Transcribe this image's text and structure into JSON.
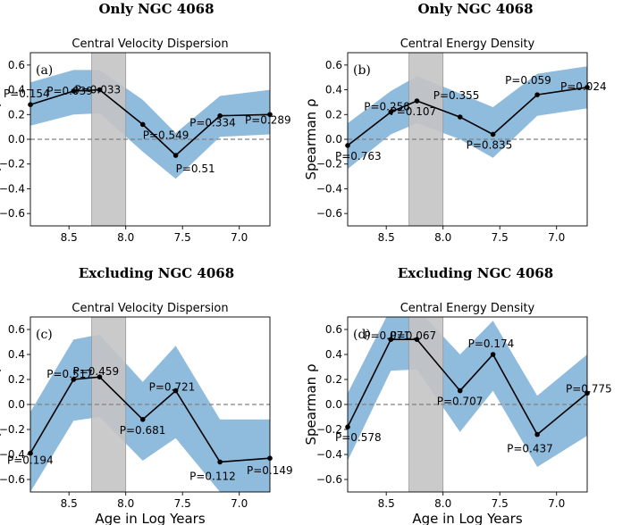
{
  "chart_data": [
    {
      "type": "line",
      "suptitle": "Only NGC 4068",
      "title": "Central Velocity Dispersion",
      "panel_label": "(a)",
      "xlabel": "",
      "ylabel": "Spearman ρ",
      "xlim": [
        8.84,
        6.73
      ],
      "ylim": [
        -0.7,
        0.7
      ],
      "xticks": [
        8.5,
        8.0,
        7.5,
        7.0
      ],
      "xtick_labels": [
        "8.5",
        "8.0",
        "7.5",
        "7.0"
      ],
      "yticks": [
        -0.6,
        -0.4,
        -0.2,
        0.0,
        0.2,
        0.4,
        0.6
      ],
      "ytick_labels": [
        "−0.6",
        "−0.4",
        "−0.2",
        "0.0",
        "0.2",
        "0.4",
        "0.6"
      ],
      "shaded_region": [
        8.3,
        8.0
      ],
      "x": [
        8.84,
        8.46,
        8.23,
        7.85,
        7.56,
        7.17,
        6.73
      ],
      "values": [
        0.28,
        0.39,
        0.4,
        0.12,
        -0.13,
        0.19,
        0.2
      ],
      "band_upper": [
        0.46,
        0.56,
        0.56,
        0.32,
        0.05,
        0.35,
        0.4
      ],
      "band_lower": [
        0.11,
        0.2,
        0.21,
        -0.1,
        -0.32,
        0.02,
        0.04
      ],
      "p_labels": [
        "P=0.154",
        "P=0.039",
        "P=0.033",
        "P=0.549",
        "P=0.51",
        "P=0.334",
        "P=0.289"
      ]
    },
    {
      "type": "line",
      "suptitle": "Only NGC 4068",
      "title": "Central Energy Density",
      "panel_label": "(b)",
      "xlabel": "",
      "ylabel": "Spearman ρ",
      "xlim": [
        8.84,
        6.73
      ],
      "ylim": [
        -0.7,
        0.7
      ],
      "xticks": [
        8.5,
        8.0,
        7.5,
        7.0
      ],
      "xtick_labels": [
        "8.5",
        "8.0",
        "7.5",
        "7.0"
      ],
      "yticks": [
        -0.6,
        -0.4,
        -0.2,
        0.0,
        0.2,
        0.4,
        0.6
      ],
      "ytick_labels": [
        "−0.6",
        "−0.4",
        "−0.2",
        "0.0",
        "0.2",
        "0.4",
        "0.6"
      ],
      "shaded_region": [
        8.3,
        8.0
      ],
      "x": [
        8.84,
        8.46,
        8.23,
        7.85,
        7.56,
        7.17,
        6.73
      ],
      "values": [
        -0.05,
        0.22,
        0.31,
        0.18,
        0.04,
        0.36,
        0.42
      ],
      "band_upper": [
        0.13,
        0.39,
        0.51,
        0.37,
        0.26,
        0.53,
        0.59
      ],
      "band_lower": [
        -0.24,
        0.04,
        0.13,
        0.0,
        -0.15,
        0.19,
        0.25
      ],
      "p_labels": [
        "P=0.763",
        "P=0.258",
        "P=0.107",
        "P=0.355",
        "P=0.835",
        "P=0.059",
        "P=0.024"
      ]
    },
    {
      "type": "line",
      "suptitle": "Excluding NGC 4068",
      "title": "Central Velocity Dispersion",
      "panel_label": "(c)",
      "xlabel": "Age in Log Years",
      "ylabel": "Spearman ρ",
      "xlim": [
        8.84,
        6.73
      ],
      "ylim": [
        -0.7,
        0.7
      ],
      "xticks": [
        8.5,
        8.0,
        7.5,
        7.0
      ],
      "xtick_labels": [
        "8.5",
        "8.0",
        "7.5",
        "7.0"
      ],
      "yticks": [
        -0.6,
        -0.4,
        -0.2,
        0.0,
        0.2,
        0.4,
        0.6
      ],
      "ytick_labels": [
        "−0.6",
        "−0.4",
        "−0.2",
        "0.0",
        "0.2",
        "0.4",
        "0.6"
      ],
      "shaded_region": [
        8.3,
        8.0
      ],
      "x": [
        8.84,
        8.46,
        8.23,
        7.85,
        7.56,
        7.17,
        6.73
      ],
      "values": [
        -0.39,
        0.2,
        0.22,
        -0.12,
        0.11,
        -0.46,
        -0.43
      ],
      "band_upper": [
        -0.06,
        0.52,
        0.56,
        0.18,
        0.47,
        -0.12,
        -0.12
      ],
      "band_lower": [
        -0.7,
        -0.13,
        -0.1,
        -0.45,
        -0.27,
        -0.7,
        -0.7
      ],
      "p_labels": [
        "P=0.194",
        "P=0.517",
        "P=0.459",
        "P=0.681",
        "P=0.721",
        "P=0.112",
        "P=0.149"
      ]
    },
    {
      "type": "line",
      "suptitle": "Excluding NGC 4068",
      "title": "Central Energy Density",
      "panel_label": "(d)",
      "xlabel": "Age in Log Years",
      "ylabel": "Spearman ρ",
      "xlim": [
        8.84,
        6.73
      ],
      "ylim": [
        -0.7,
        0.7
      ],
      "xticks": [
        8.5,
        8.0,
        7.5,
        7.0
      ],
      "xtick_labels": [
        "8.5",
        "8.0",
        "7.5",
        "7.0"
      ],
      "yticks": [
        -0.6,
        -0.4,
        -0.2,
        0.0,
        0.2,
        0.4,
        0.6
      ],
      "ytick_labels": [
        "−0.6",
        "−0.4",
        "−0.2",
        "0.0",
        "0.2",
        "0.4",
        "0.6"
      ],
      "shaded_region": [
        8.3,
        8.0
      ],
      "x": [
        8.84,
        8.46,
        8.23,
        7.85,
        7.56,
        7.17,
        6.73
      ],
      "values": [
        -0.18,
        0.52,
        0.52,
        0.11,
        0.4,
        -0.24,
        0.09
      ],
      "band_upper": [
        0.09,
        0.77,
        0.77,
        0.4,
        0.67,
        0.07,
        0.4
      ],
      "band_lower": [
        -0.45,
        0.27,
        0.28,
        -0.22,
        0.11,
        -0.5,
        -0.25
      ],
      "p_labels": [
        "P=0.578",
        "P=0.071",
        "P=0.067",
        "P=0.707",
        "P=0.174",
        "P=0.437",
        "P=0.775"
      ]
    }
  ],
  "colors": {
    "band": "#8fbbdd",
    "shade": "#c4c4c4",
    "line": "#000000",
    "zero_line": "#808080"
  }
}
